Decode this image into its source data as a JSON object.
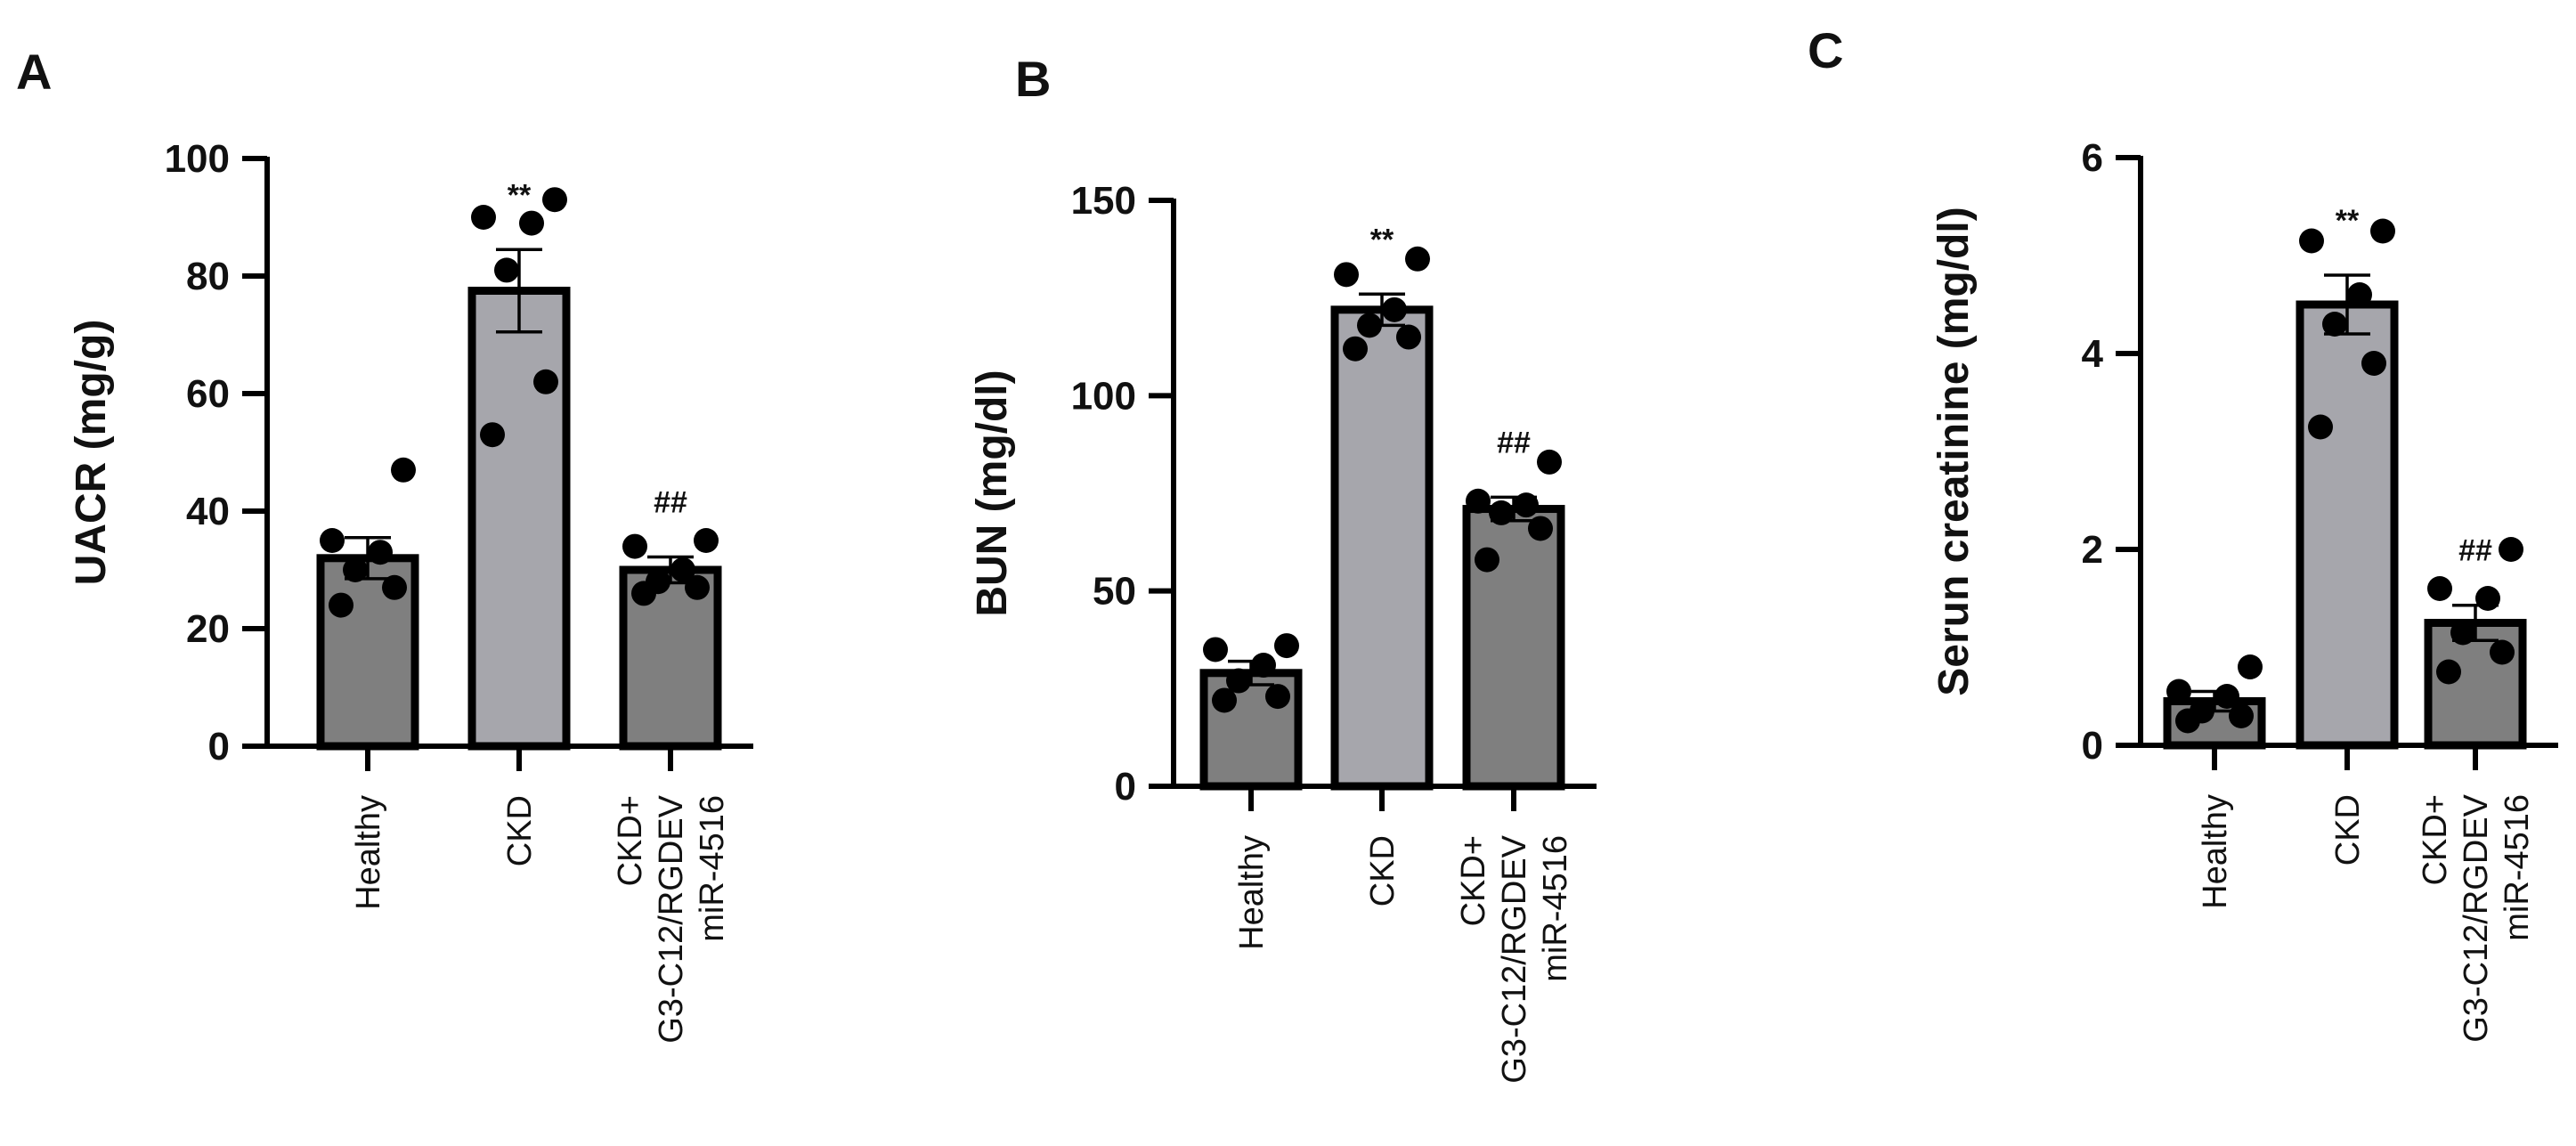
{
  "chart_data": [
    {
      "type": "bar",
      "panel": "A",
      "ylabel": "UACR (mg/g)",
      "ylim": [
        0,
        100
      ],
      "yticks": [
        0,
        20,
        40,
        60,
        80,
        100
      ],
      "categories": [
        [
          "Healthy"
        ],
        [
          "CKD"
        ],
        [
          "CKD+",
          "G3-C12/RGDEV",
          "miR-4516"
        ]
      ],
      "values": [
        32,
        77.5,
        30
      ],
      "errors": [
        3.5,
        7,
        2.2
      ],
      "bar_colors": [
        "#7f7f7f",
        "#a6a6ac",
        "#7f7f7f"
      ],
      "points": [
        [
          24,
          27,
          30,
          33,
          35,
          47
        ],
        [
          53,
          62,
          81,
          89,
          90,
          93
        ],
        [
          26,
          27,
          28,
          30,
          34,
          35
        ]
      ],
      "annotations": [
        "",
        "**",
        "##"
      ]
    },
    {
      "type": "bar",
      "panel": "B",
      "ylabel": "BUN (mg/dl)",
      "ylim": [
        0,
        150
      ],
      "yticks": [
        0,
        50,
        100,
        150
      ],
      "categories": [
        [
          "Healthy"
        ],
        [
          "CKD"
        ],
        [
          "CKD+",
          "G3-C12/RGDEV",
          "miR-4516"
        ]
      ],
      "values": [
        29,
        122,
        71
      ],
      "errors": [
        3,
        4,
        3
      ],
      "bar_colors": [
        "#7f7f7f",
        "#a6a6ac",
        "#7f7f7f"
      ],
      "points": [
        [
          22,
          23,
          27,
          31,
          35,
          36
        ],
        [
          112,
          115,
          118,
          122,
          131,
          135
        ],
        [
          58,
          66,
          70,
          72,
          73,
          83
        ]
      ],
      "annotations": [
        "",
        "**",
        "##"
      ]
    },
    {
      "type": "bar",
      "panel": "C",
      "ylabel": "Serun creatinine (mg/dl)",
      "ylim": [
        0,
        6
      ],
      "yticks": [
        0,
        2,
        4,
        6
      ],
      "categories": [
        [
          "Healthy"
        ],
        [
          "CKD"
        ],
        [
          "CKD+",
          "G3-C12/RGDEV",
          "miR-4516"
        ]
      ],
      "values": [
        0.45,
        4.5,
        1.25
      ],
      "errors": [
        0.1,
        0.3,
        0.18
      ],
      "bar_colors": [
        "#7f7f7f",
        "#a6a6ac",
        "#7f7f7f"
      ],
      "points": [
        [
          0.25,
          0.3,
          0.35,
          0.5,
          0.55,
          0.8
        ],
        [
          3.25,
          3.9,
          4.3,
          4.6,
          5.15,
          5.25
        ],
        [
          0.75,
          0.95,
          1.15,
          1.5,
          1.6,
          2.0
        ]
      ],
      "annotations": [
        "",
        "**",
        "##"
      ]
    }
  ]
}
